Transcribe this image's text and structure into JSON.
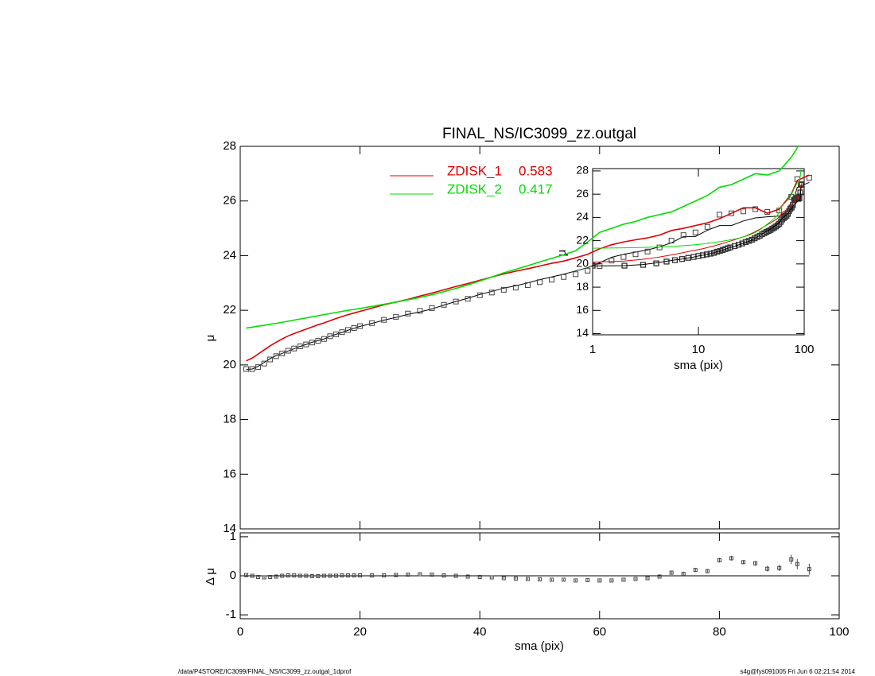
{
  "chart_data": [
    {
      "type": "line",
      "title": "FINAL_NS/IC3099_zz.outgal",
      "ylabel": "μ",
      "xlim": [
        0,
        100
      ],
      "ylim": [
        14,
        28
      ],
      "yticks": [
        14,
        16,
        18,
        20,
        22,
        24,
        26,
        28
      ],
      "x": [
        1,
        2,
        3,
        4,
        5,
        6,
        7,
        8,
        9,
        10,
        11,
        12,
        13,
        14,
        15,
        16,
        17,
        18,
        19,
        20,
        22,
        24,
        26,
        28,
        30,
        32,
        34,
        36,
        38,
        40,
        42,
        44,
        46,
        48,
        50,
        52,
        54,
        56,
        58,
        60,
        62,
        64,
        66,
        68,
        70,
        72,
        74,
        76,
        78,
        80,
        82,
        84,
        86,
        88,
        90,
        92,
        93,
        95
      ],
      "values": [
        19.85,
        19.85,
        19.92,
        20.05,
        20.2,
        20.32,
        20.42,
        20.52,
        20.6,
        20.68,
        20.75,
        20.82,
        20.88,
        20.95,
        21.05,
        21.12,
        21.2,
        21.28,
        21.35,
        21.42,
        21.53,
        21.65,
        21.76,
        21.88,
        21.98,
        22.08,
        22.2,
        22.32,
        22.42,
        22.55,
        22.65,
        22.75,
        22.83,
        22.92,
        23.03,
        23.12,
        23.22,
        23.32,
        23.45,
        23.62,
        23.82,
        23.95,
        24.05,
        24.15,
        24.3,
        24.55,
        24.75,
        24.85,
        25.05,
        25.5,
        25.55,
        25.62,
        25.7,
        25.6,
        25.65,
        26.15,
        26.8,
        26.85
      ],
      "marker_color": "#444444",
      "model_values": [
        19.83,
        19.85,
        19.95,
        20.09,
        20.23,
        20.34,
        20.42,
        20.51,
        20.59,
        20.68,
        20.75,
        20.83,
        20.89,
        20.95,
        21.05,
        21.12,
        21.19,
        21.27,
        21.34,
        21.41,
        21.52,
        21.64,
        21.74,
        21.85,
        21.94,
        22.05,
        22.19,
        22.32,
        22.44,
        22.58,
        22.69,
        22.81,
        22.9,
        23.0,
        23.12,
        23.22,
        23.32,
        23.44,
        23.56,
        23.74,
        23.94,
        24.05,
        24.13,
        24.21,
        24.32,
        24.47,
        24.7,
        24.7,
        24.93,
        25.1,
        25.1,
        25.27,
        25.38,
        25.42,
        25.45,
        25.73,
        26.5,
        26.68
      ],
      "model_color": "#000000",
      "series": [
        {
          "name": "ZDISK_1",
          "fraction": 0.583,
          "color": "#e00000",
          "values": [
            20.15,
            20.25,
            20.4,
            20.55,
            20.7,
            20.83,
            20.95,
            21.06,
            21.15,
            21.23,
            21.31,
            21.39,
            21.47,
            21.54,
            21.62,
            21.7,
            21.77,
            21.84,
            21.9,
            21.96,
            22.08,
            22.2,
            22.3,
            22.4,
            22.52,
            22.63,
            22.75,
            22.87,
            22.98,
            23.1,
            23.22,
            23.33,
            23.43,
            23.52,
            23.62,
            23.72,
            23.8,
            23.92,
            24.05,
            24.25,
            24.4,
            24.5,
            24.58,
            24.65,
            24.75,
            24.92,
            25.0,
            25.1,
            25.2,
            25.35,
            25.55,
            25.75,
            25.75,
            25.55,
            25.7,
            26.25,
            26.75,
            26.95
          ]
        },
        {
          "name": "ZDISK_2",
          "fraction": 0.417,
          "color": "#00dd00",
          "values": [
            21.35,
            21.38,
            21.42,
            21.45,
            21.49,
            21.52,
            21.56,
            21.6,
            21.64,
            21.68,
            21.72,
            21.76,
            21.8,
            21.84,
            21.88,
            21.92,
            21.96,
            22.0,
            22.03,
            22.07,
            22.14,
            22.22,
            22.3,
            22.38,
            22.47,
            22.57,
            22.68,
            22.8,
            22.93,
            23.07,
            23.22,
            23.37,
            23.5,
            23.63,
            23.77,
            23.9,
            24.03,
            24.18,
            24.5,
            24.85,
            25.0,
            25.15,
            25.25,
            25.4,
            25.5,
            25.6,
            25.8,
            26.0,
            26.2,
            26.5,
            26.6,
            26.8,
            27.0,
            26.95,
            27.1,
            27.6,
            27.95,
            28.6
          ]
        }
      ]
    },
    {
      "type": "residual",
      "xlabel": "sma (pix)",
      "ylabel": "Δ μ",
      "xlim": [
        0,
        100
      ],
      "xticks": [
        0,
        20,
        40,
        60,
        80,
        100
      ],
      "ylim": [
        -1.1,
        1.1
      ],
      "yticks": [
        -1,
        0,
        1
      ],
      "hline": 0,
      "values": [
        0.02,
        0.0,
        -0.03,
        -0.04,
        -0.03,
        -0.02,
        0.0,
        0.01,
        0.01,
        0.0,
        0.0,
        -0.01,
        -0.01,
        0.0,
        0.0,
        0.0,
        0.01,
        0.01,
        0.01,
        0.01,
        0.01,
        0.01,
        0.02,
        0.03,
        0.04,
        0.03,
        0.01,
        0.0,
        -0.02,
        -0.03,
        -0.04,
        -0.06,
        -0.07,
        -0.08,
        -0.09,
        -0.1,
        -0.1,
        -0.12,
        -0.11,
        -0.12,
        -0.12,
        -0.1,
        -0.08,
        -0.06,
        -0.02,
        0.08,
        0.05,
        0.15,
        0.12,
        0.4,
        0.45,
        0.35,
        0.32,
        0.18,
        0.2,
        0.42,
        0.3,
        0.17
      ],
      "errors": [
        0.02,
        0.02,
        0.02,
        0.02,
        0.02,
        0.02,
        0.02,
        0.02,
        0.02,
        0.02,
        0.02,
        0.02,
        0.02,
        0.02,
        0.02,
        0.02,
        0.02,
        0.02,
        0.02,
        0.02,
        0.02,
        0.02,
        0.02,
        0.02,
        0.02,
        0.02,
        0.02,
        0.02,
        0.02,
        0.02,
        0.02,
        0.02,
        0.02,
        0.02,
        0.02,
        0.02,
        0.02,
        0.02,
        0.02,
        0.02,
        0.02,
        0.02,
        0.02,
        0.02,
        0.02,
        0.03,
        0.03,
        0.04,
        0.04,
        0.06,
        0.06,
        0.05,
        0.06,
        0.07,
        0.08,
        0.12,
        0.13,
        0.14
      ]
    },
    {
      "type": "inset",
      "xlabel": "sma (pix)",
      "ylabel": "μ",
      "xscale": "log",
      "xlim": [
        1,
        100
      ],
      "xticks": [
        1,
        10,
        100
      ],
      "ylim": [
        13.9,
        28.2
      ],
      "yticks": [
        14,
        16,
        18,
        20,
        22,
        24,
        26,
        28
      ]
    }
  ],
  "footer": {
    "left": "/data/P4STORE/IC3099/FINAL_NS/IC3099_zz.outgal_1dprof",
    "right": "s4g@fys091005  Fri Jun  6 02:21:54 2014"
  }
}
